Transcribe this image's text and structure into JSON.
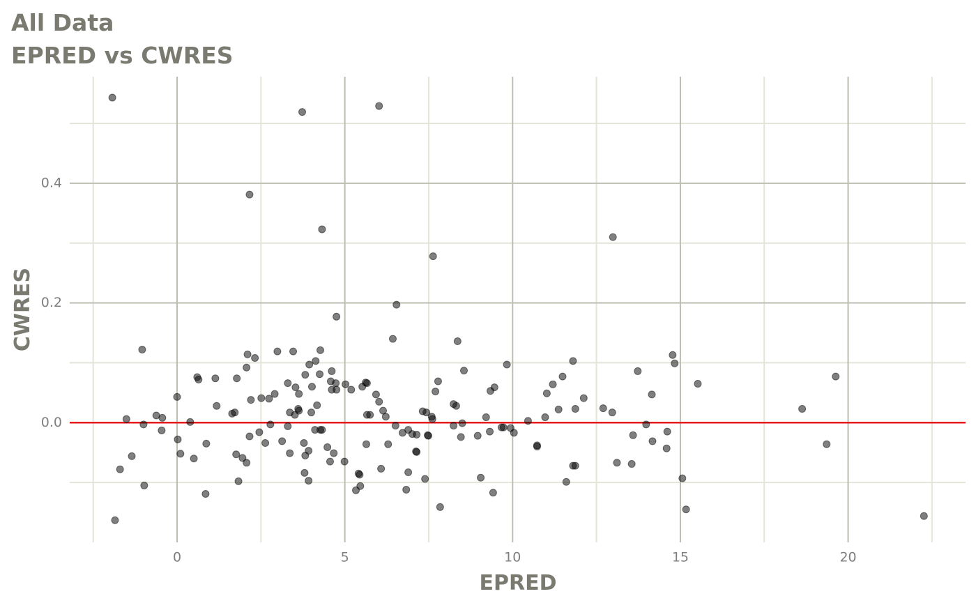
{
  "chart_data": {
    "type": "scatter",
    "title": "All Data",
    "subtitle": "EPRED vs CWRES",
    "x_label": "EPRED",
    "y_label": "CWRES",
    "color": "#000000",
    "opacity": 0.5,
    "hline": {
      "value": 0,
      "color": "#e41a1c"
    },
    "xlim": [
      -3.2,
      23.5
    ],
    "ylim": [
      -0.2,
      0.578
    ],
    "xticks": [
      0,
      5,
      10,
      15,
      20
    ],
    "yticks": [
      {
        "value": 0,
        "label": "0.0"
      },
      0.2,
      0.4
    ],
    "grid": true,
    "x": [
      -1.93,
      3.73,
      6.02,
      2.16,
      4.32,
      12.99,
      7.63,
      6.54,
      4.75,
      6.43,
      8.36,
      -1.04,
      2.99,
      3.46,
      4.27,
      2.1,
      2.32,
      14.77,
      14.83,
      11.8,
      9.83,
      3.94,
      4.13,
      2.07,
      4.61,
      8.55,
      13.73,
      19.63,
      0.6,
      0.64,
      1.14,
      1.78,
      3.82,
      4.25,
      11.49,
      7.78,
      4.58,
      4.73,
      3.3,
      5.02,
      5.62,
      5.66,
      5.52,
      3.53,
      4.02,
      4.61,
      4.75,
      5.19,
      9.46,
      9.34,
      7.7,
      11.2,
      15.52,
      11.02,
      14.15,
      5.93,
      2.91,
      3.63,
      0.0,
      2.51,
      2.74,
      2.2,
      12.12,
      6.02,
      8.24,
      8.32,
      4.17,
      1.18,
      12.7,
      11.37,
      11.87,
      18.63,
      3.61,
      3.63,
      6.14,
      7.32,
      7.43,
      12.97,
      3.36,
      4.0,
      1.72,
      1.64,
      3.51,
      5.66,
      5.75,
      6.22,
      7.59,
      7.61,
      9.21,
      10.97,
      -0.62,
      -0.44,
      -1.51,
      0.39,
      8.5,
      10.46,
      6.51,
      8.24,
      13.98,
      -1.0,
      2.78,
      3.3,
      9.67,
      9.73,
      9.94,
      4.11,
      4.27,
      4.32,
      6.89,
      -0.46,
      2.45,
      6.72,
      7.01,
      7.14,
      7.49,
      7.47,
      9.32,
      10.04,
      14.61,
      13.59,
      8.96,
      8.46,
      2.16,
      0.02,
      3.13,
      14.17,
      3.78,
      2.63,
      0.87,
      5.64,
      6.29,
      19.36,
      10.73,
      10.73,
      4.48,
      14.59,
      3.92,
      7.12,
      7.14,
      0.1,
      3.36,
      4.67,
      1.76,
      3.82,
      -1.35,
      1.95,
      0.5,
      4.99,
      4.56,
      2.07,
      13.11,
      13.55,
      11.8,
      11.87,
      6.08,
      -1.7,
      6.89,
      3.8,
      5.41,
      5.44,
      9.05,
      15.06,
      7.39,
      3.92,
      1.83,
      11.6,
      -0.98,
      5.46,
      5.33,
      6.83,
      9.42,
      0.85,
      7.84,
      15.17,
      22.26,
      -1.85
    ],
    "values": [
      0.543,
      0.519,
      0.529,
      0.381,
      0.323,
      0.31,
      0.278,
      0.197,
      0.177,
      0.14,
      0.136,
      0.122,
      0.119,
      0.119,
      0.121,
      0.114,
      0.108,
      0.113,
      0.099,
      0.103,
      0.097,
      0.097,
      0.103,
      0.092,
      0.086,
      0.087,
      0.086,
      0.077,
      0.076,
      0.072,
      0.074,
      0.074,
      0.08,
      0.081,
      0.077,
      0.069,
      0.069,
      0.066,
      0.066,
      0.064,
      0.067,
      0.066,
      0.06,
      0.059,
      0.06,
      0.055,
      0.055,
      0.055,
      0.059,
      0.053,
      0.052,
      0.064,
      0.065,
      0.049,
      0.047,
      0.047,
      0.048,
      0.048,
      0.043,
      0.041,
      0.04,
      0.038,
      0.041,
      0.035,
      0.031,
      0.028,
      0.029,
      0.028,
      0.024,
      0.022,
      0.023,
      0.023,
      0.023,
      0.02,
      0.02,
      0.019,
      0.017,
      0.017,
      0.017,
      0.017,
      0.017,
      0.015,
      0.013,
      0.013,
      0.013,
      0.01,
      0.01,
      0.006,
      0.009,
      0.009,
      0.012,
      0.008,
      0.006,
      0.001,
      -0.001,
      0.003,
      -0.005,
      -0.005,
      -0.003,
      -0.003,
      -0.003,
      -0.006,
      -0.008,
      -0.008,
      -0.009,
      -0.012,
      -0.012,
      -0.012,
      -0.012,
      -0.013,
      -0.016,
      -0.017,
      -0.019,
      -0.02,
      -0.022,
      -0.021,
      -0.015,
      -0.017,
      -0.015,
      -0.021,
      -0.022,
      -0.024,
      -0.023,
      -0.028,
      -0.031,
      -0.031,
      -0.034,
      -0.034,
      -0.035,
      -0.036,
      -0.036,
      -0.036,
      -0.038,
      -0.04,
      -0.041,
      -0.043,
      -0.047,
      -0.048,
      -0.049,
      -0.052,
      -0.051,
      -0.051,
      -0.053,
      -0.055,
      -0.056,
      -0.059,
      -0.06,
      -0.065,
      -0.065,
      -0.067,
      -0.067,
      -0.069,
      -0.072,
      -0.072,
      -0.077,
      -0.078,
      -0.083,
      -0.084,
      -0.085,
      -0.087,
      -0.092,
      -0.093,
      -0.094,
      -0.097,
      -0.098,
      -0.099,
      -0.105,
      -0.106,
      -0.113,
      -0.112,
      -0.117,
      -0.119,
      -0.141,
      -0.145,
      -0.156,
      -0.163
    ]
  }
}
